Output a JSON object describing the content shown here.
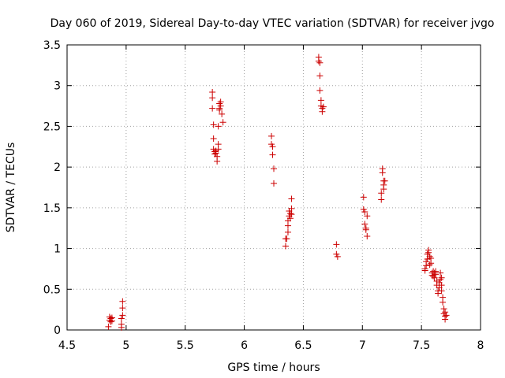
{
  "chart_data": {
    "type": "scatter",
    "title": "Day 060 of 2019, Sidereal Day-to-day VTEC variation (SDTVAR) for receiver jvgo",
    "xlabel": "GPS time / hours",
    "ylabel": "SDTVAR / TECUs",
    "xlim": [
      4.5,
      8
    ],
    "ylim": [
      0,
      3.5
    ],
    "grid": true,
    "marker": "plus",
    "color": "#cc0000",
    "x_ticks": [
      {
        "value": 4.5,
        "label": "4.5"
      },
      {
        "value": 5,
        "label": "5"
      },
      {
        "value": 5.5,
        "label": "5.5"
      },
      {
        "value": 6,
        "label": "6"
      },
      {
        "value": 6.5,
        "label": "6.5"
      },
      {
        "value": 7,
        "label": "7"
      },
      {
        "value": 7.5,
        "label": "7.5"
      },
      {
        "value": 8,
        "label": "8"
      }
    ],
    "y_ticks": [
      {
        "value": 0,
        "label": "0"
      },
      {
        "value": 0.5,
        "label": "0.5"
      },
      {
        "value": 1,
        "label": "1"
      },
      {
        "value": 1.5,
        "label": "1.5"
      },
      {
        "value": 2,
        "label": "2"
      },
      {
        "value": 2.5,
        "label": "2.5"
      },
      {
        "value": 3,
        "label": "3"
      },
      {
        "value": 3.5,
        "label": "3.5"
      }
    ],
    "points": [
      [
        4.85,
        0.04
      ],
      [
        4.86,
        0.12
      ],
      [
        4.86,
        0.16
      ],
      [
        4.87,
        0.1
      ],
      [
        4.87,
        0.14
      ],
      [
        4.88,
        0.11
      ],
      [
        4.88,
        0.15
      ],
      [
        4.96,
        0.03
      ],
      [
        4.96,
        0.07
      ],
      [
        4.96,
        0.14
      ],
      [
        4.97,
        0.18
      ],
      [
        4.97,
        0.27
      ],
      [
        4.97,
        0.35
      ],
      [
        5.73,
        2.92
      ],
      [
        5.73,
        2.85
      ],
      [
        5.73,
        2.72
      ],
      [
        5.74,
        2.52
      ],
      [
        5.74,
        2.35
      ],
      [
        5.74,
        2.22
      ],
      [
        5.75,
        2.19
      ],
      [
        5.75,
        2.16
      ],
      [
        5.76,
        2.2
      ],
      [
        5.76,
        2.17
      ],
      [
        5.77,
        2.13
      ],
      [
        5.77,
        2.07
      ],
      [
        5.78,
        2.22
      ],
      [
        5.78,
        2.28
      ],
      [
        5.78,
        2.5
      ],
      [
        5.79,
        2.78
      ],
      [
        5.79,
        2.72
      ],
      [
        5.79,
        2.7
      ],
      [
        5.8,
        2.75
      ],
      [
        5.8,
        2.8
      ],
      [
        5.81,
        2.65
      ],
      [
        5.82,
        2.55
      ],
      [
        6.23,
        2.38
      ],
      [
        6.23,
        2.28
      ],
      [
        6.24,
        2.25
      ],
      [
        6.24,
        2.15
      ],
      [
        6.25,
        1.98
      ],
      [
        6.25,
        1.8
      ],
      [
        6.35,
        1.03
      ],
      [
        6.35,
        1.12
      ],
      [
        6.36,
        1.12
      ],
      [
        6.37,
        1.2
      ],
      [
        6.37,
        1.28
      ],
      [
        6.37,
        1.34
      ],
      [
        6.38,
        1.4
      ],
      [
        6.38,
        1.46
      ],
      [
        6.39,
        1.37
      ],
      [
        6.39,
        1.43
      ],
      [
        6.4,
        1.49
      ],
      [
        6.4,
        1.42
      ],
      [
        6.4,
        1.61
      ],
      [
        6.63,
        3.35
      ],
      [
        6.63,
        3.3
      ],
      [
        6.64,
        3.28
      ],
      [
        6.64,
        3.12
      ],
      [
        6.64,
        2.94
      ],
      [
        6.65,
        2.82
      ],
      [
        6.65,
        2.75
      ],
      [
        6.66,
        2.72
      ],
      [
        6.66,
        2.68
      ],
      [
        6.67,
        2.74
      ],
      [
        6.78,
        1.05
      ],
      [
        6.78,
        0.93
      ],
      [
        6.79,
        0.9
      ],
      [
        7.01,
        1.63
      ],
      [
        7.01,
        1.48
      ],
      [
        7.02,
        1.45
      ],
      [
        7.02,
        1.3
      ],
      [
        7.03,
        1.25
      ],
      [
        7.03,
        1.23
      ],
      [
        7.04,
        1.4
      ],
      [
        7.04,
        1.15
      ],
      [
        7.16,
        1.6
      ],
      [
        7.16,
        1.68
      ],
      [
        7.17,
        1.98
      ],
      [
        7.17,
        1.93
      ],
      [
        7.18,
        1.83
      ],
      [
        7.18,
        1.78
      ],
      [
        7.18,
        1.73
      ],
      [
        7.19,
        1.83
      ],
      [
        7.53,
        0.75
      ],
      [
        7.53,
        0.73
      ],
      [
        7.54,
        0.79
      ],
      [
        7.54,
        0.84
      ],
      [
        7.55,
        0.87
      ],
      [
        7.55,
        0.93
      ],
      [
        7.56,
        0.98
      ],
      [
        7.56,
        0.95
      ],
      [
        7.57,
        0.9
      ],
      [
        7.57,
        0.8
      ],
      [
        7.58,
        0.82
      ],
      [
        7.58,
        0.88
      ],
      [
        7.59,
        0.7
      ],
      [
        7.59,
        0.67
      ],
      [
        7.6,
        0.72
      ],
      [
        7.6,
        0.66
      ],
      [
        7.61,
        0.64
      ],
      [
        7.61,
        0.7
      ],
      [
        7.62,
        0.68
      ],
      [
        7.62,
        0.72
      ],
      [
        7.63,
        0.6
      ],
      [
        7.63,
        0.55
      ],
      [
        7.64,
        0.48
      ],
      [
        7.64,
        0.45
      ],
      [
        7.65,
        0.52
      ],
      [
        7.65,
        0.58
      ],
      [
        7.66,
        0.62
      ],
      [
        7.66,
        0.7
      ],
      [
        7.67,
        0.64
      ],
      [
        7.67,
        0.55
      ],
      [
        7.67,
        0.48
      ],
      [
        7.68,
        0.4
      ],
      [
        7.68,
        0.34
      ],
      [
        7.69,
        0.26
      ],
      [
        7.69,
        0.2
      ],
      [
        7.7,
        0.17
      ],
      [
        7.7,
        0.13
      ],
      [
        7.7,
        0.22
      ],
      [
        7.71,
        0.18
      ]
    ]
  }
}
